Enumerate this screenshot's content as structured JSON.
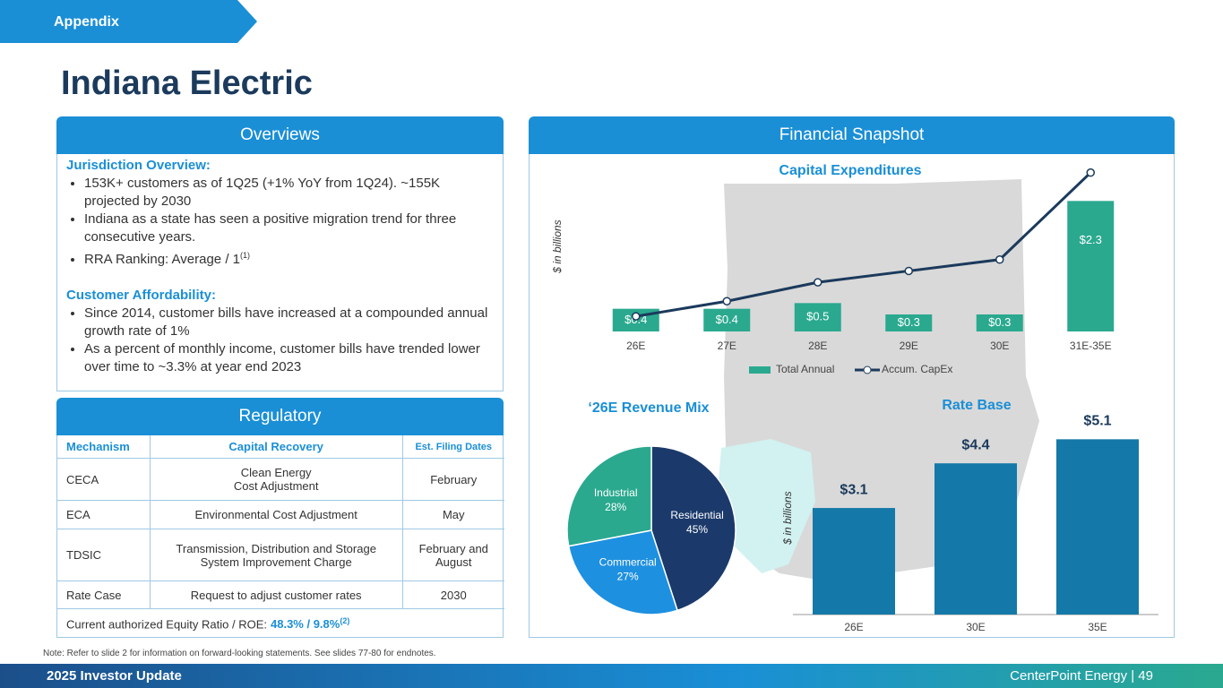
{
  "header": {
    "tag": "Appendix",
    "title": "Indiana Electric"
  },
  "overviews": {
    "heading": "Overviews",
    "sections": [
      {
        "title": "Jurisdiction Overview:",
        "bullets": [
          {
            "text": "153K+ customers as of 1Q25 (+1% YoY from 1Q24). ~155K projected by 2030"
          },
          {
            "text": "Indiana as a state has seen a positive migration trend for three consecutive years."
          },
          {
            "text": "RRA Ranking: Average / 1",
            "sup": "(1)"
          }
        ]
      },
      {
        "title": "Customer Affordability:",
        "bullets": [
          {
            "text": "Since 2014, customer bills have increased at a compounded annual growth rate of 1%"
          },
          {
            "text": "As a percent of monthly income, customer bills have trended lower over time to ~3.3% at year end 2023"
          }
        ]
      }
    ]
  },
  "regulatory": {
    "heading": "Regulatory",
    "columns": [
      "Mechanism",
      "Capital Recovery",
      "Est. Filing Dates"
    ],
    "rows": [
      [
        "CECA",
        "Clean Energy\nCost Adjustment",
        "February"
      ],
      [
        "ECA",
        "Environmental Cost Adjustment",
        "May"
      ],
      [
        "TDSIC",
        "Transmission, Distribution and Storage\nSystem Improvement Charge",
        "February and\nAugust"
      ],
      [
        "Rate Case",
        "Request to adjust customer rates",
        "2030"
      ]
    ],
    "equity": {
      "label": "Current authorized Equity Ratio / ROE:",
      "value": "48.3% / 9.8%",
      "sup": "(2)"
    }
  },
  "financial": {
    "heading": "Financial Snapshot"
  },
  "chart_data": [
    {
      "type": "bar",
      "title": "Capital Expenditures",
      "y_label": "$ in billions",
      "categories": [
        "26E",
        "27E",
        "28E",
        "29E",
        "30E",
        "31E-35E"
      ],
      "series": [
        {
          "name": "Total Annual",
          "type": "bar",
          "color": "#2aa98f",
          "values": [
            0.4,
            0.4,
            0.5,
            0.3,
            0.3,
            2.3
          ],
          "value_labels": [
            "$0.4",
            "$0.4",
            "$0.5",
            "$0.3",
            "$0.3",
            "$2.3"
          ]
        },
        {
          "name": "Accum. CapEx",
          "type": "line",
          "axis": "y2",
          "color": "#1b3a5c",
          "values": [
            0.4,
            0.8,
            1.3,
            1.6,
            1.9,
            4.2
          ]
        }
      ],
      "ylim": [
        0,
        3
      ],
      "y2lim": [
        0,
        4.5
      ],
      "legend": "bottom"
    },
    {
      "type": "pie",
      "title": "‘26E Revenue Mix",
      "categories": [
        "Residential",
        "Commercial",
        "Industrial"
      ],
      "values": [
        45,
        27,
        28
      ],
      "value_labels": [
        "45%",
        "27%",
        "28%"
      ],
      "colors": [
        "#1b3a6b",
        "#1e90e0",
        "#2aa98f"
      ]
    },
    {
      "type": "bar",
      "title": "Rate Base",
      "y_label": "$ in billions",
      "categories": [
        "26E",
        "30E",
        "35E"
      ],
      "values": [
        3.1,
        4.4,
        5.1
      ],
      "value_labels": [
        "$3.1",
        "$4.4",
        "$5.1"
      ],
      "color": "#1479a8",
      "ylim": [
        0,
        5.5
      ]
    }
  ],
  "note": "Note: Refer to slide 2 for information on forward-looking statements. See slides 77-80 for endnotes.",
  "footer": {
    "left": "2025 Investor Update",
    "right": "CenterPoint Energy | 49"
  }
}
